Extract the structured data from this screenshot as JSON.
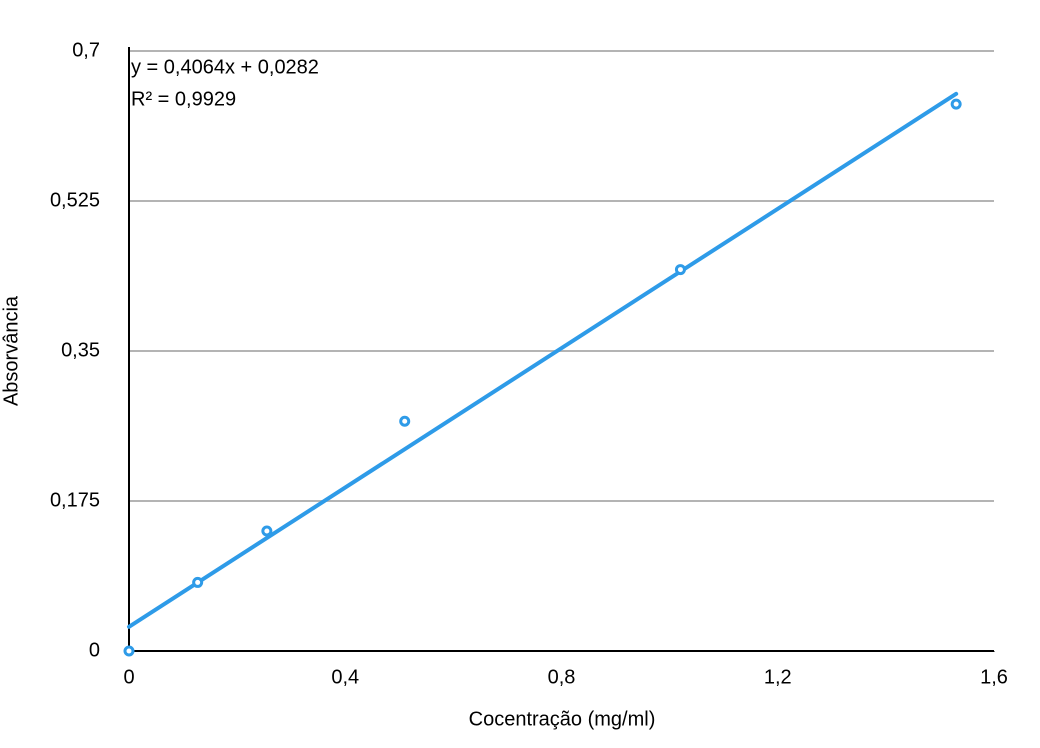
{
  "chart_data": {
    "type": "scatter",
    "x_label": "Cocentração (mg/ml)",
    "y_label": "Absorvância",
    "x": [
      0,
      0.127,
      0.255,
      0.51,
      1.02,
      1.53
    ],
    "values": [
      0,
      0.08,
      0.14,
      0.268,
      0.445,
      0.638
    ],
    "color": "#2e9be8",
    "xlim": [
      0,
      1.6
    ],
    "ylim": [
      0,
      0.7
    ],
    "xticks": [
      0,
      {
        "value": 0.4,
        "label": "0,4"
      },
      {
        "value": 0.8,
        "label": "0,8"
      },
      {
        "value": 1.2,
        "label": "1,2"
      },
      {
        "value": 1.6,
        "label": "1,6"
      }
    ],
    "yticks": [
      0,
      {
        "value": 0.175,
        "label": "0,175"
      },
      {
        "value": 0.35,
        "label": "0,35"
      },
      {
        "value": 0.525,
        "label": "0,525"
      },
      {
        "value": 0.7,
        "label": "0,7"
      }
    ],
    "grid": true,
    "trendline": {
      "slope": 0.4064,
      "intercept": 0.0282
    },
    "annotations": [
      "y = 0,4064x + 0,0282",
      "R² = 0,9929"
    ]
  }
}
